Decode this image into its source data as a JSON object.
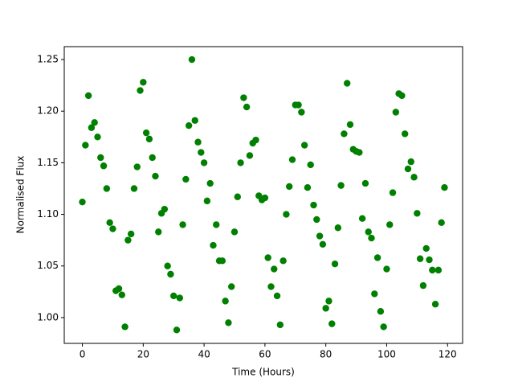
{
  "chart_data": {
    "type": "scatter",
    "x_label": "Time (Hours)",
    "y_label": "Normalised Flux",
    "x": [
      0,
      1,
      2,
      3,
      4,
      5,
      6,
      7,
      8,
      9,
      10,
      11,
      12,
      13,
      14,
      15,
      16,
      17,
      18,
      19,
      20,
      21,
      22,
      23,
      24,
      25,
      26,
      27,
      28,
      29,
      30,
      31,
      32,
      33,
      34,
      35,
      36,
      37,
      38,
      39,
      40,
      41,
      42,
      43,
      44,
      45,
      46,
      47,
      48,
      49,
      50,
      51,
      52,
      53,
      54,
      55,
      56,
      57,
      58,
      59,
      60,
      61,
      62,
      63,
      64,
      65,
      66,
      67,
      68,
      69,
      70,
      71,
      72,
      73,
      74,
      75,
      76,
      77,
      78,
      79,
      80,
      81,
      82,
      83,
      84,
      85,
      86,
      87,
      88,
      89,
      90,
      91,
      92,
      93,
      94,
      95,
      96,
      97,
      98,
      99,
      100,
      101,
      102,
      103,
      104,
      105,
      106,
      107,
      108,
      109,
      110,
      111,
      112,
      113,
      114,
      115,
      116,
      117,
      118,
      119
    ],
    "series": [
      {
        "color": "#008000",
        "values": [
          1.112,
          1.167,
          1.215,
          1.184,
          1.189,
          1.175,
          1.155,
          1.147,
          1.125,
          1.092,
          1.086,
          1.026,
          1.028,
          1.022,
          0.991,
          1.075,
          1.081,
          1.125,
          1.146,
          1.22,
          1.228,
          1.179,
          1.173,
          1.155,
          1.137,
          1.083,
          1.101,
          1.105,
          1.05,
          1.042,
          1.021,
          0.988,
          1.019,
          1.09,
          1.134,
          1.186,
          1.25,
          1.191,
          1.17,
          1.16,
          1.15,
          1.113,
          1.13,
          1.07,
          1.09,
          1.055,
          1.055,
          1.016,
          0.995,
          1.03,
          1.083,
          1.117,
          1.15,
          1.213,
          1.204,
          1.157,
          1.169,
          1.172,
          1.118,
          1.114,
          1.116,
          1.058,
          1.03,
          1.047,
          1.021,
          0.993,
          1.055,
          1.1,
          1.127,
          1.153,
          1.206,
          1.206,
          1.199,
          1.167,
          1.126,
          1.148,
          1.109,
          1.095,
          1.079,
          1.071,
          1.009,
          1.016,
          0.994,
          1.052,
          1.087,
          1.128,
          1.178,
          1.227,
          1.187,
          1.163,
          1.161,
          1.16,
          1.096,
          1.13,
          1.083,
          1.077,
          1.023,
          1.058,
          1.006,
          0.991,
          1.047,
          1.09,
          1.121,
          1.199,
          1.217,
          1.215,
          1.178,
          1.144,
          1.151,
          1.136,
          1.101,
          1.057,
          1.031,
          1.067,
          1.056,
          1.046,
          1.013,
          1.046,
          1.092,
          1.126
        ]
      }
    ],
    "xlim": [
      -5.95,
      124.95
    ],
    "xticks": [
      0,
      20,
      40,
      60,
      80,
      100,
      120
    ],
    "ylim": [
      0.975,
      1.2625
    ],
    "yticks": [
      {
        "value": 1,
        "label": "1.00"
      },
      1.05,
      {
        "value": 1.1,
        "label": "1.10"
      },
      1.15,
      {
        "value": 1.2,
        "label": "1.20"
      },
      1.25
    ],
    "grid": false
  }
}
